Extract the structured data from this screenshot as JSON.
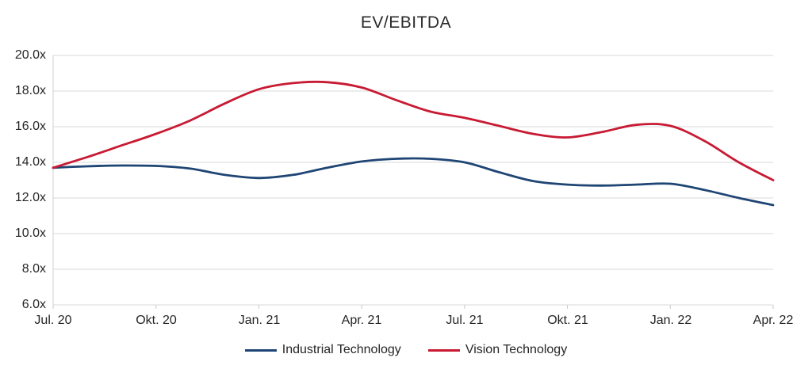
{
  "title": "EV/EBITDA",
  "legend": {
    "items": [
      {
        "label": "Industrial Technology",
        "color": "#1F4574"
      },
      {
        "label": "Vision Technology",
        "color": "#C81A33"
      }
    ]
  },
  "chart_data": {
    "type": "line",
    "title": "EV/EBITDA",
    "xlabel": "",
    "ylabel": "",
    "ylim": [
      6,
      20
    ],
    "ytick_step": 2,
    "ytick_labels_top_to_bottom": [
      "20.0x",
      "18.0x",
      "16.0x",
      "14.0x",
      "12.0x",
      "10.0x",
      "8.0x",
      "6.0x"
    ],
    "xtick_labels": [
      "Jul. 20",
      "Okt. 20",
      "Jan. 21",
      "Apr. 21",
      "Jul. 21",
      "Okt. 21",
      "Jan. 22",
      "Apr. 22"
    ],
    "xtick_indices": [
      0,
      3,
      6,
      9,
      12,
      15,
      18,
      21
    ],
    "grid": "horizontal",
    "legend_position": "bottom",
    "line_style": "smooth",
    "categories": [
      "Jul. 20",
      "Aug. 20",
      "Sep. 20",
      "Okt. 20",
      "Nov. 20",
      "Dez. 20",
      "Jan. 21",
      "Feb. 21",
      "Mär. 21",
      "Apr. 21",
      "Mai 21",
      "Jun. 21",
      "Jul. 21",
      "Aug. 21",
      "Sep. 21",
      "Okt. 21",
      "Nov. 21",
      "Dez. 21",
      "Jan. 22",
      "Feb. 22",
      "Mär. 22",
      "Apr. 22"
    ],
    "series": [
      {
        "name": "Industrial Technology",
        "color": "#1F4574",
        "values": [
          13.7,
          13.78,
          13.82,
          13.8,
          13.65,
          13.3,
          13.12,
          13.3,
          13.7,
          14.05,
          14.2,
          14.2,
          14.0,
          13.45,
          12.95,
          12.75,
          12.7,
          12.75,
          12.8,
          12.45,
          12.0,
          11.6
        ]
      },
      {
        "name": "Vision Technology",
        "color": "#C81A33",
        "values": [
          13.7,
          14.3,
          14.95,
          15.6,
          16.35,
          17.3,
          18.1,
          18.45,
          18.5,
          18.2,
          17.5,
          16.85,
          16.5,
          16.05,
          15.6,
          15.4,
          15.7,
          16.1,
          16.05,
          15.2,
          14.0,
          13.0
        ]
      }
    ],
    "colors": {
      "grid": "#D9D9D9",
      "axis": "#D2D2D2",
      "tick": "#C8C8C8",
      "text": "#262626"
    }
  }
}
